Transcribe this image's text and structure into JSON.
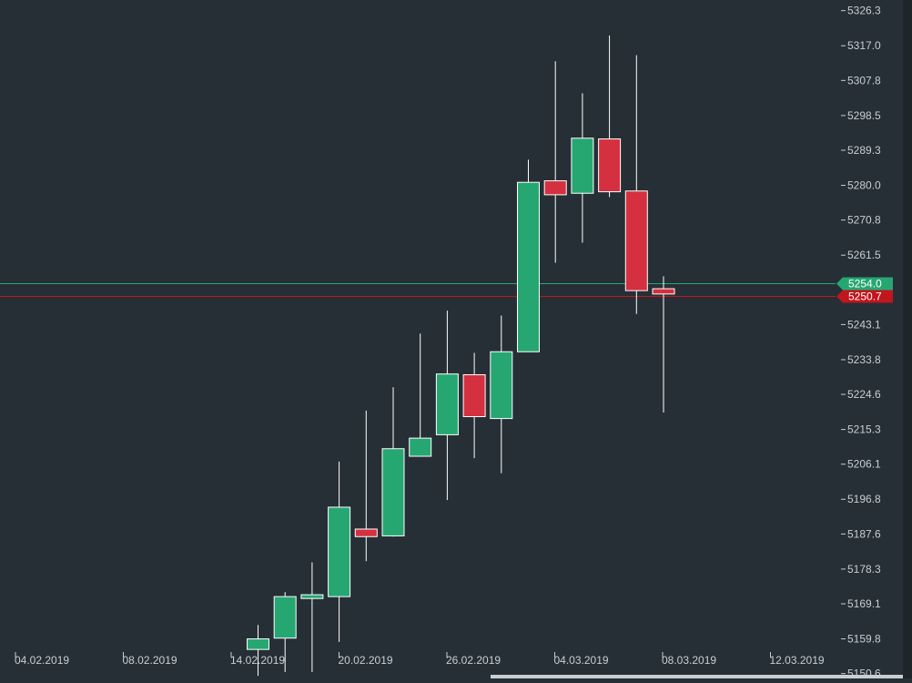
{
  "chart_data": {
    "type": "candlestick",
    "title": "",
    "x_ticks": [
      "04.02.2019",
      "08.02.2019",
      "14.02.2019",
      "20.02.2019",
      "26.02.2019",
      "04.03.2019",
      "08.03.2019",
      "12.03.2019"
    ],
    "y_ticks": [
      "5150.6",
      "5159.8",
      "5169.1",
      "5178.3",
      "5187.6",
      "5196.8",
      "5206.1",
      "5215.3",
      "5224.6",
      "5233.8",
      "5243.1",
      "5261.5",
      "5270.8",
      "5280.0",
      "5289.3",
      "5298.5",
      "5307.8",
      "5317.0",
      "5326.3"
    ],
    "ylim": [
      5149.0,
      5329.0
    ],
    "up_color": "#26a772",
    "down_color": "#d5303f",
    "candles": [
      {
        "open": 5157.0,
        "high": 5163.5,
        "low": 5150.0,
        "close": 5159.8
      },
      {
        "open": 5160.0,
        "high": 5172.2,
        "low": 5151.0,
        "close": 5171.0
      },
      {
        "open": 5170.5,
        "high": 5180.1,
        "low": 5151.0,
        "close": 5171.5
      },
      {
        "open": 5171.0,
        "high": 5206.8,
        "low": 5159.0,
        "close": 5194.7
      },
      {
        "open": 5188.9,
        "high": 5220.3,
        "low": 5180.4,
        "close": 5186.9
      },
      {
        "open": 5187.1,
        "high": 5226.5,
        "low": 5186.9,
        "close": 5210.2
      },
      {
        "open": 5208.2,
        "high": 5240.7,
        "low": 5208.2,
        "close": 5213.0
      },
      {
        "open": 5213.9,
        "high": 5246.8,
        "low": 5196.6,
        "close": 5230.0
      },
      {
        "open": 5229.8,
        "high": 5235.6,
        "low": 5207.7,
        "close": 5218.7
      },
      {
        "open": 5218.2,
        "high": 5245.5,
        "low": 5203.7,
        "close": 5235.9
      },
      {
        "open": 5235.9,
        "high": 5286.8,
        "low": 5235.9,
        "close": 5280.8
      },
      {
        "open": 5281.2,
        "high": 5312.9,
        "low": 5259.5,
        "close": 5277.5
      },
      {
        "open": 5277.9,
        "high": 5304.4,
        "low": 5264.8,
        "close": 5292.5
      },
      {
        "open": 5292.3,
        "high": 5319.7,
        "low": 5276.9,
        "close": 5278.3
      },
      {
        "open": 5278.5,
        "high": 5314.5,
        "low": 5245.9,
        "close": 5252.1
      },
      {
        "open": 5252.6,
        "high": 5255.9,
        "low": 5219.8,
        "close": 5251.2
      }
    ],
    "price_lines": [
      {
        "value": 5254.0,
        "label": "5254.0",
        "color": "#26a772"
      },
      {
        "value": 5250.7,
        "label": "5250.7",
        "color": "#c0161e"
      }
    ]
  }
}
